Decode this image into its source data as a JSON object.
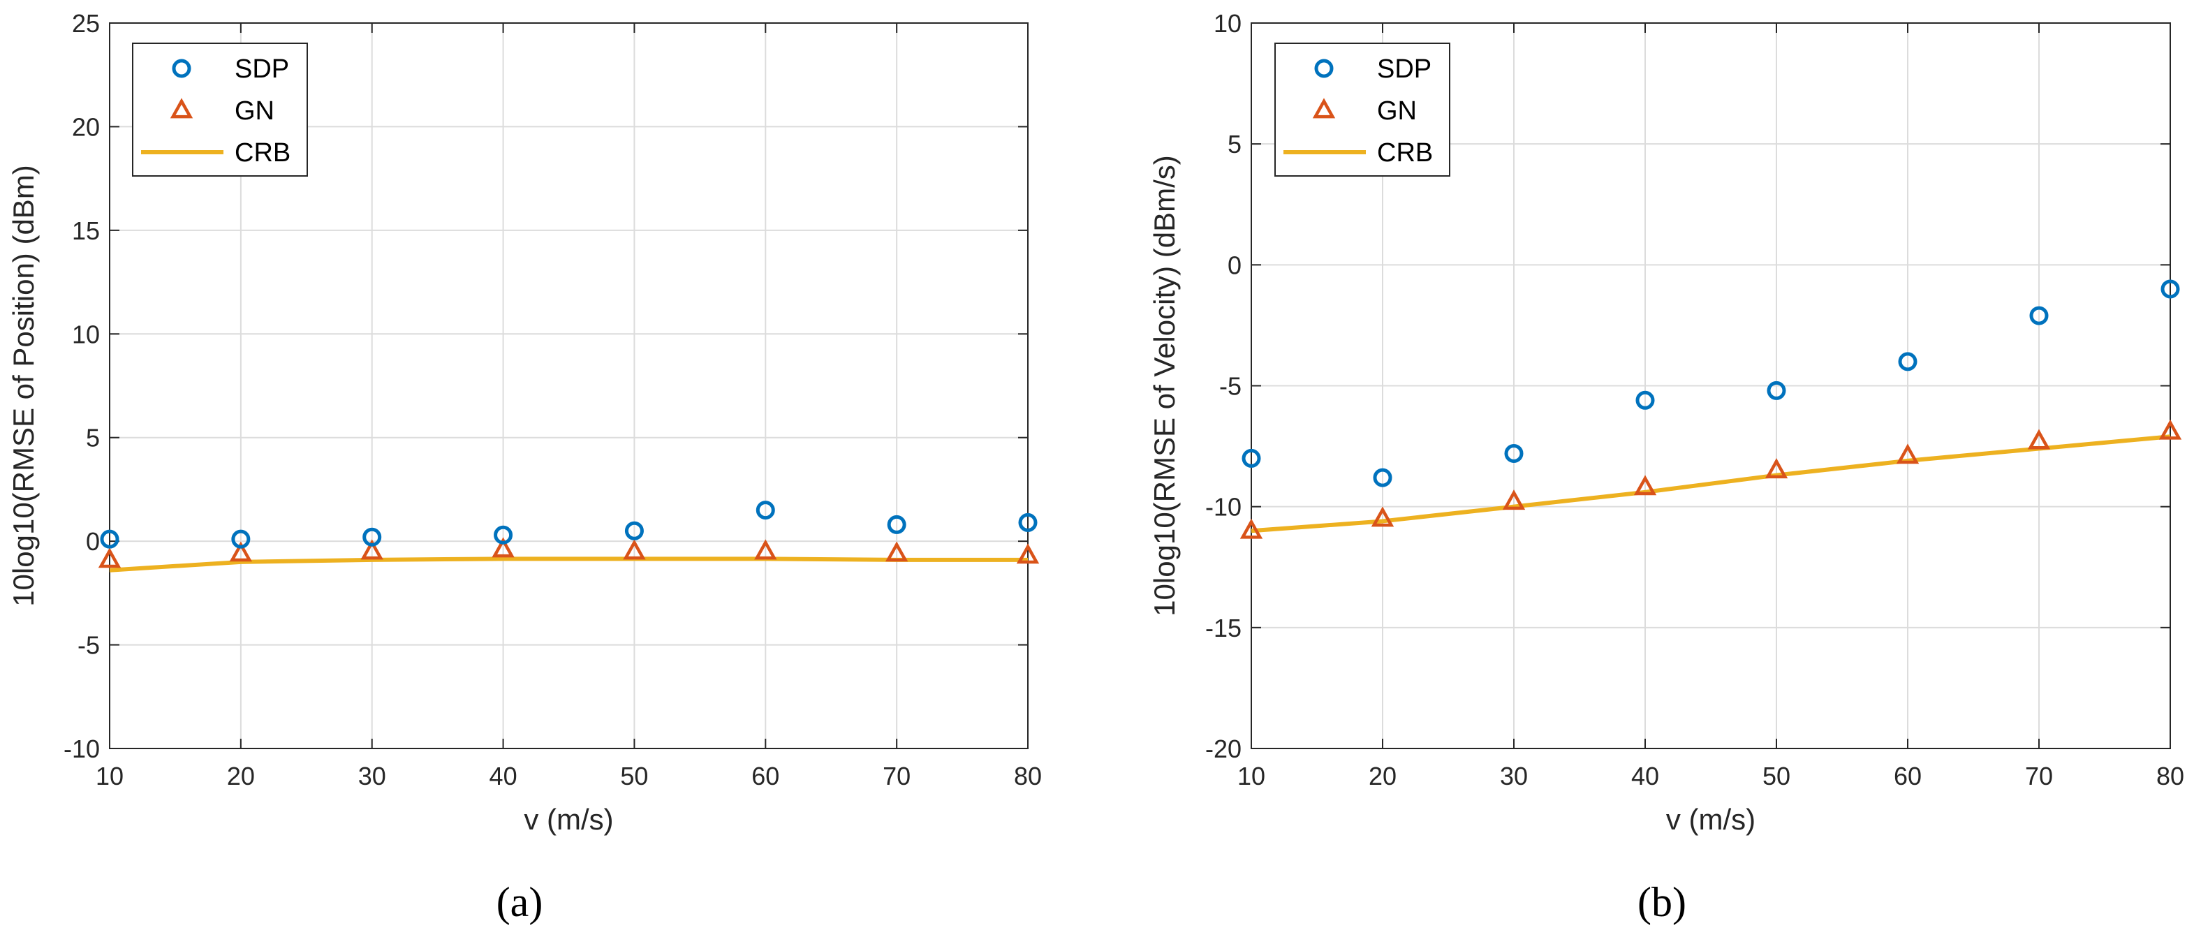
{
  "chart_data": [
    {
      "type": "line",
      "panel_label": "(a)",
      "xlabel": "v (m/s)",
      "ylabel": "10log10(RMSE of Position) (dBm)",
      "xlim": [
        10,
        80
      ],
      "ylim": [
        -10,
        25
      ],
      "xticks": [
        10,
        20,
        30,
        40,
        50,
        60,
        70,
        80
      ],
      "yticks": [
        -10,
        -5,
        0,
        5,
        10,
        15,
        20,
        25
      ],
      "grid": true,
      "legend_position": "top-left",
      "x": [
        10,
        20,
        30,
        40,
        50,
        60,
        70,
        80
      ],
      "series": [
        {
          "name": "SDP",
          "marker": "circle",
          "color": "#0072BD",
          "values": [
            0.1,
            0.1,
            0.2,
            0.3,
            0.5,
            1.5,
            0.8,
            0.9
          ]
        },
        {
          "name": "GN",
          "marker": "triangle",
          "color": "#D95319",
          "values": [
            -0.9,
            -0.6,
            -0.5,
            -0.4,
            -0.5,
            -0.5,
            -0.6,
            -0.7
          ]
        },
        {
          "name": "CRB",
          "marker": "line",
          "color": "#EDB120",
          "values": [
            -1.4,
            -1.0,
            -0.9,
            -0.85,
            -0.85,
            -0.85,
            -0.9,
            -0.9
          ]
        }
      ]
    },
    {
      "type": "line",
      "panel_label": "(b)",
      "xlabel": "v (m/s)",
      "ylabel": "10log10(RMSE of Velocity) (dBm/s)",
      "xlim": [
        10,
        80
      ],
      "ylim": [
        -20,
        10
      ],
      "xticks": [
        10,
        20,
        30,
        40,
        50,
        60,
        70,
        80
      ],
      "yticks": [
        -20,
        -15,
        -10,
        -5,
        0,
        5,
        10
      ],
      "grid": true,
      "legend_position": "top-left",
      "x": [
        10,
        20,
        30,
        40,
        50,
        60,
        70,
        80
      ],
      "series": [
        {
          "name": "SDP",
          "marker": "circle",
          "color": "#0072BD",
          "values": [
            -8.0,
            -8.8,
            -7.8,
            -5.6,
            -5.2,
            -4.0,
            -2.1,
            -1.0
          ]
        },
        {
          "name": "GN",
          "marker": "triangle",
          "color": "#D95319",
          "values": [
            -11.0,
            -10.5,
            -9.8,
            -9.2,
            -8.5,
            -7.9,
            -7.3,
            -6.9
          ]
        },
        {
          "name": "CRB",
          "marker": "line",
          "color": "#EDB120",
          "values": [
            -11.0,
            -10.6,
            -10.0,
            -9.4,
            -8.7,
            -8.1,
            -7.6,
            -7.1
          ]
        }
      ]
    }
  ]
}
